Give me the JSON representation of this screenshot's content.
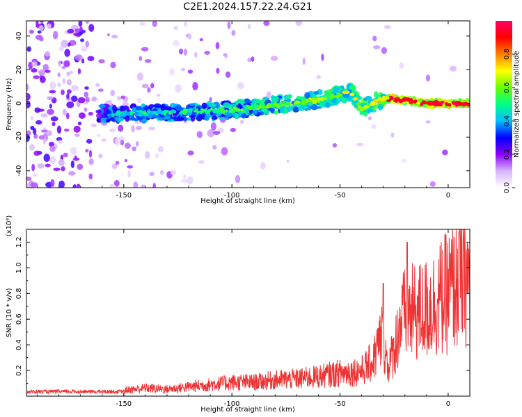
{
  "title": "C2E1.2024.157.22.24.G21",
  "chart_data": [
    {
      "type": "heatmap",
      "title": "C2E1.2024.157.22.24.G21",
      "xlabel": "Height of straight line (km)",
      "ylabel": "Frequency (Hz)",
      "xlim": [
        -195,
        10
      ],
      "ylim": [
        -50,
        49
      ],
      "x_ticks": [
        -150,
        -100,
        -50,
        0
      ],
      "y_ticks": [
        -40,
        -20,
        0,
        20,
        40
      ],
      "colorbar": {
        "label": "Normalized spectral amplitude",
        "range": [
          0.0,
          1.0
        ],
        "ticks": [
          0.0,
          0.2,
          0.4,
          0.6,
          0.8
        ],
        "tick_labels": [
          "0.0",
          "0.2",
          "0.4",
          "0.6",
          "0.8"
        ],
        "colormap": [
          "#ffffff",
          "#d9b3ff",
          "#8a00ff",
          "#0000ff",
          "#00bfff",
          "#00ff88",
          "#66ff00",
          "#ffff00",
          "#ff8000",
          "#ff0000",
          "#ff0066"
        ]
      },
      "ridge": [
        {
          "x": -160,
          "y": -6
        },
        {
          "x": -140,
          "y": -6
        },
        {
          "x": -120,
          "y": -5
        },
        {
          "x": -100,
          "y": -4
        },
        {
          "x": -80,
          "y": -1
        },
        {
          "x": -60,
          "y": 2
        },
        {
          "x": -45,
          "y": 7
        },
        {
          "x": -40,
          "y": -3
        },
        {
          "x": -30,
          "y": 3
        },
        {
          "x": -20,
          "y": 2
        },
        {
          "x": -10,
          "y": 0
        },
        {
          "x": 0,
          "y": 0
        },
        {
          "x": 10,
          "y": 0
        }
      ]
    },
    {
      "type": "line",
      "xlabel": "Height of straight line (km)",
      "ylabel": "SNR (10 * v/v)",
      "y_multiplier": "(x10⁴)",
      "xlim": [
        -195,
        10
      ],
      "ylim": [
        0,
        1.3
      ],
      "x_ticks": [
        -150,
        -100,
        -50,
        0
      ],
      "y_ticks": [
        0.2,
        0.4,
        0.6,
        0.8,
        1.0,
        1.2
      ],
      "color": "#ee3333",
      "series": [
        {
          "x": [
            -195,
            -180,
            -170,
            -160,
            -150,
            -140,
            -130,
            -120,
            -110,
            -100,
            -90,
            -80,
            -70,
            -60,
            -50,
            -40,
            -35,
            -30,
            -28,
            -25,
            -22,
            -20,
            -15,
            -10,
            -5,
            0,
            5,
            8,
            10
          ],
          "values": [
            0.03,
            0.03,
            0.03,
            0.04,
            0.05,
            0.07,
            0.06,
            0.08,
            0.1,
            0.12,
            0.12,
            0.14,
            0.15,
            0.17,
            0.2,
            0.22,
            0.3,
            0.55,
            0.25,
            0.4,
            0.65,
            0.7,
            0.72,
            0.75,
            0.82,
            0.9,
            1.0,
            1.05,
            0.95
          ]
        }
      ],
      "spikes": [
        {
          "x": -30,
          "y": 0.88
        },
        {
          "x": -19,
          "y": 1.2
        },
        {
          "x": 5,
          "y": 1.28
        }
      ]
    }
  ]
}
